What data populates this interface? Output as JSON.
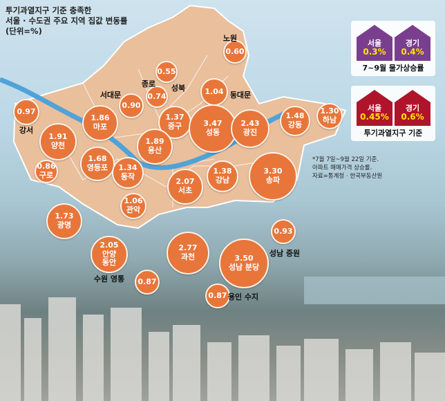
{
  "title": {
    "line1": "투기과열지구 기준 충족한",
    "line2": "서울 · 수도권 주요 지역 집값 변동률",
    "unit": "(단위=%)"
  },
  "bubbles": [
    {
      "value": "0.60",
      "label": ""
    },
    {
      "value": "0.55",
      "label": ""
    },
    {
      "value": "0.74",
      "label": ""
    },
    {
      "value": "1.04",
      "label": ""
    },
    {
      "value": "0.90",
      "label": ""
    },
    {
      "value": "0.97",
      "label": ""
    },
    {
      "value": "1.86",
      "label": "마포"
    },
    {
      "value": "1.37",
      "label": "중구"
    },
    {
      "value": "3.47",
      "label": "성동"
    },
    {
      "value": "2.43",
      "label": "광진"
    },
    {
      "value": "1.48",
      "label": "강동"
    },
    {
      "value": "1.30",
      "label": "하남"
    },
    {
      "value": "1.91",
      "label": "양천"
    },
    {
      "value": "1.89",
      "label": "용산"
    },
    {
      "value": "1.68",
      "label": "영등포"
    },
    {
      "value": "1.34",
      "label": "동작"
    },
    {
      "value": "0.86",
      "label": "구로"
    },
    {
      "value": "1.38",
      "label": "강남"
    },
    {
      "value": "3.30",
      "label": "송파"
    },
    {
      "value": "2.07",
      "label": "서초"
    },
    {
      "value": "1.06",
      "label": "관악"
    },
    {
      "value": "1.73",
      "label": "광명"
    },
    {
      "value": "2.05",
      "label": "안양\n동안"
    },
    {
      "value": "0.87",
      "label": ""
    },
    {
      "value": "2.77",
      "label": "과천"
    },
    {
      "value": "3.50",
      "label": "성남 분당"
    },
    {
      "value": "0.93",
      "label": ""
    },
    {
      "value": "0.87",
      "label": ""
    }
  ],
  "labels": [
    "노원",
    "종로",
    "성북",
    "동대문",
    "서대문",
    "강서",
    "수원 영통",
    "성남 중원",
    "용인 수지"
  ],
  "inflation": {
    "caption": "7~9월 물가상승률",
    "items": [
      {
        "name": "서울",
        "value": "0.3%"
      },
      {
        "name": "경기",
        "value": "0.4%"
      }
    ],
    "color": "#7a3e8e"
  },
  "speculation": {
    "caption": "투기과열지구 기준",
    "items": [
      {
        "name": "서울",
        "value": "0.45%"
      },
      {
        "name": "경기",
        "value": "0.6%"
      }
    ],
    "color": "#b0142a"
  },
  "note": {
    "line1": "*7월 7일~9월 22일 기준.",
    "line2": "아파트 매매가격 상승률.",
    "line3": "자료=통계청 · 한국부동산원"
  },
  "colors": {
    "bubble": "#e8763a",
    "map": "#e9bf9c",
    "river": "#4fa3d9"
  }
}
